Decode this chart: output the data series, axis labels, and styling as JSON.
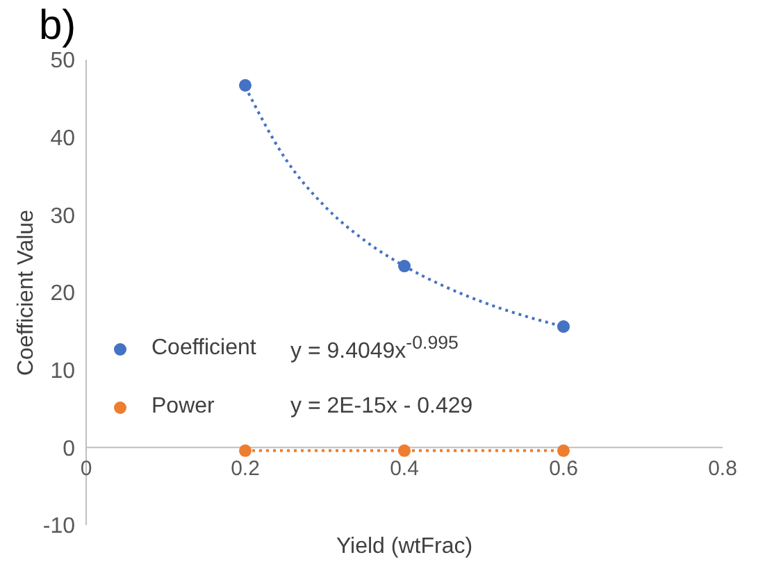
{
  "chart_data": {
    "type": "scatter",
    "annotations": [
      "b)",
      "y = 9.4049x$^{-0.995}$",
      "y = 2E-15x - 0.429"
    ],
    "xlabel": "Yield (wtFrac)",
    "ylabel": "Coefficient Value",
    "xlim": [
      0,
      0.8
    ],
    "xticks": [
      0,
      0.2,
      0.4,
      0.6,
      0.8
    ],
    "ylim": [
      -10,
      50
    ],
    "yticks": [
      -10,
      0,
      10,
      20,
      30,
      40,
      50
    ],
    "legend": "left",
    "marker": "circle",
    "series": [
      {
        "name": "Coefficient",
        "color": "#4472c4",
        "x": [
          0.2,
          0.4,
          0.6
        ],
        "values": [
          46.7,
          23.4,
          15.6
        ]
      },
      {
        "name": "Power",
        "color": "#ed7d31",
        "x": [
          0.2,
          0.4,
          0.6
        ],
        "values": [
          -0.4,
          -0.4,
          -0.4
        ]
      },
      {
        "type": "line",
        "color": "#4472c4",
        "line_style": "dotted",
        "marker": "none",
        "x": [
          0.2,
          0.25,
          0.3,
          0.35,
          0.4,
          0.45,
          0.5,
          0.55,
          0.6
        ],
        "values": [
          46.5,
          37.3,
          31.1,
          26.7,
          23.4,
          20.8,
          18.7,
          17.0,
          15.6
        ]
      },
      {
        "type": "line",
        "color": "#ed7d31",
        "line_style": "dotted",
        "marker": "none",
        "x": [
          0.2,
          0.6
        ],
        "values": [
          -0.4,
          -0.4
        ]
      }
    ]
  }
}
